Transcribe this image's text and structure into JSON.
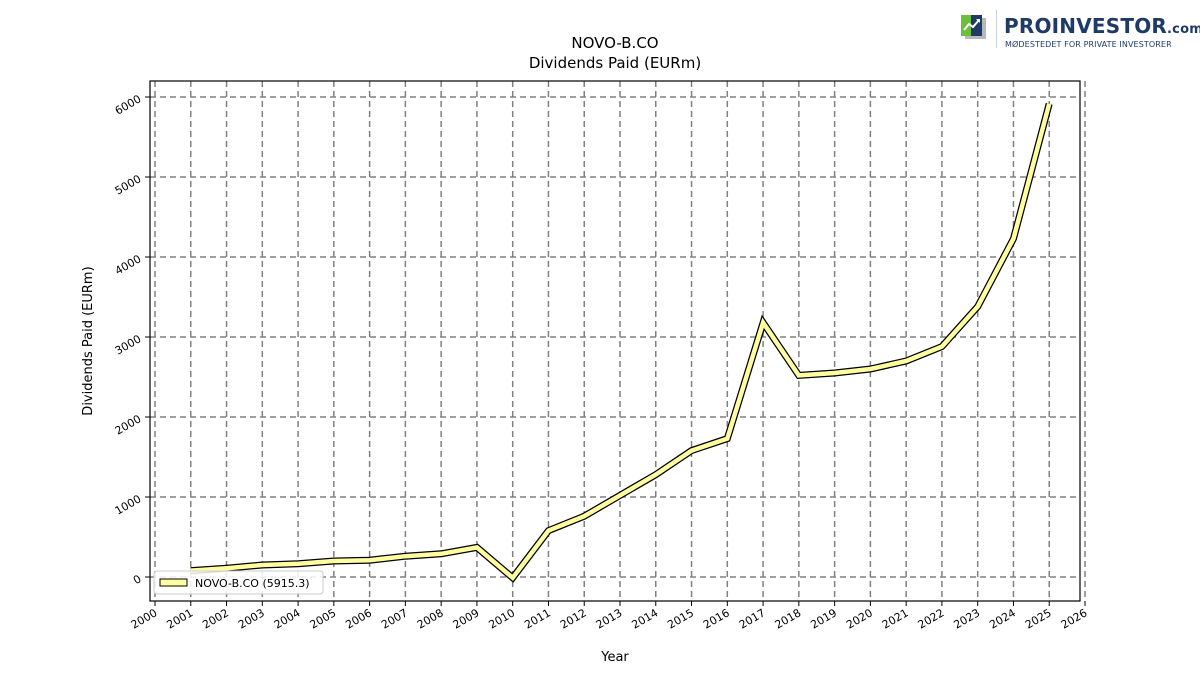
{
  "brand": {
    "name": "PROINVESTOR",
    "domain_suffix": ".com",
    "tagline": "MØDESTEDET FOR PRIVATE INVESTORER",
    "logo_icon": "chart-up-icon"
  },
  "chart_data": {
    "type": "line",
    "title_line1": "NOVO-B.CO",
    "title_line2": "Dividends Paid (EURm)",
    "xlabel": "Year",
    "ylabel": "Dividends Paid (EURm)",
    "xlim": [
      2000,
      2026
    ],
    "ylim": [
      -300,
      6200
    ],
    "x_ticks": [
      2000,
      2001,
      2002,
      2003,
      2004,
      2005,
      2006,
      2007,
      2008,
      2009,
      2010,
      2011,
      2012,
      2013,
      2014,
      2015,
      2016,
      2017,
      2018,
      2019,
      2020,
      2021,
      2022,
      2023,
      2024,
      2025,
      2026
    ],
    "y_ticks": [
      0,
      1000,
      2000,
      3000,
      4000,
      5000,
      6000
    ],
    "grid": true,
    "legend_position": "lower-left",
    "series": [
      {
        "name": "NOVO-B.CO (5915.3)",
        "color": "#ffffa0",
        "edge_color": "#000000",
        "x": [
          2001,
          2002,
          2003,
          2004,
          2005,
          2006,
          2007,
          2008,
          2009,
          2010,
          2011,
          2012,
          2013,
          2014,
          2015,
          2016,
          2017,
          2018,
          2019,
          2020,
          2021,
          2022,
          2023,
          2024,
          2025
        ],
        "y": [
          80,
          110,
          150,
          165,
          200,
          210,
          260,
          290,
          370,
          -10,
          580,
          760,
          1020,
          1280,
          1580,
          1730,
          3180,
          2520,
          2550,
          2600,
          2700,
          2880,
          3380,
          4230,
          5915.3
        ]
      }
    ]
  }
}
